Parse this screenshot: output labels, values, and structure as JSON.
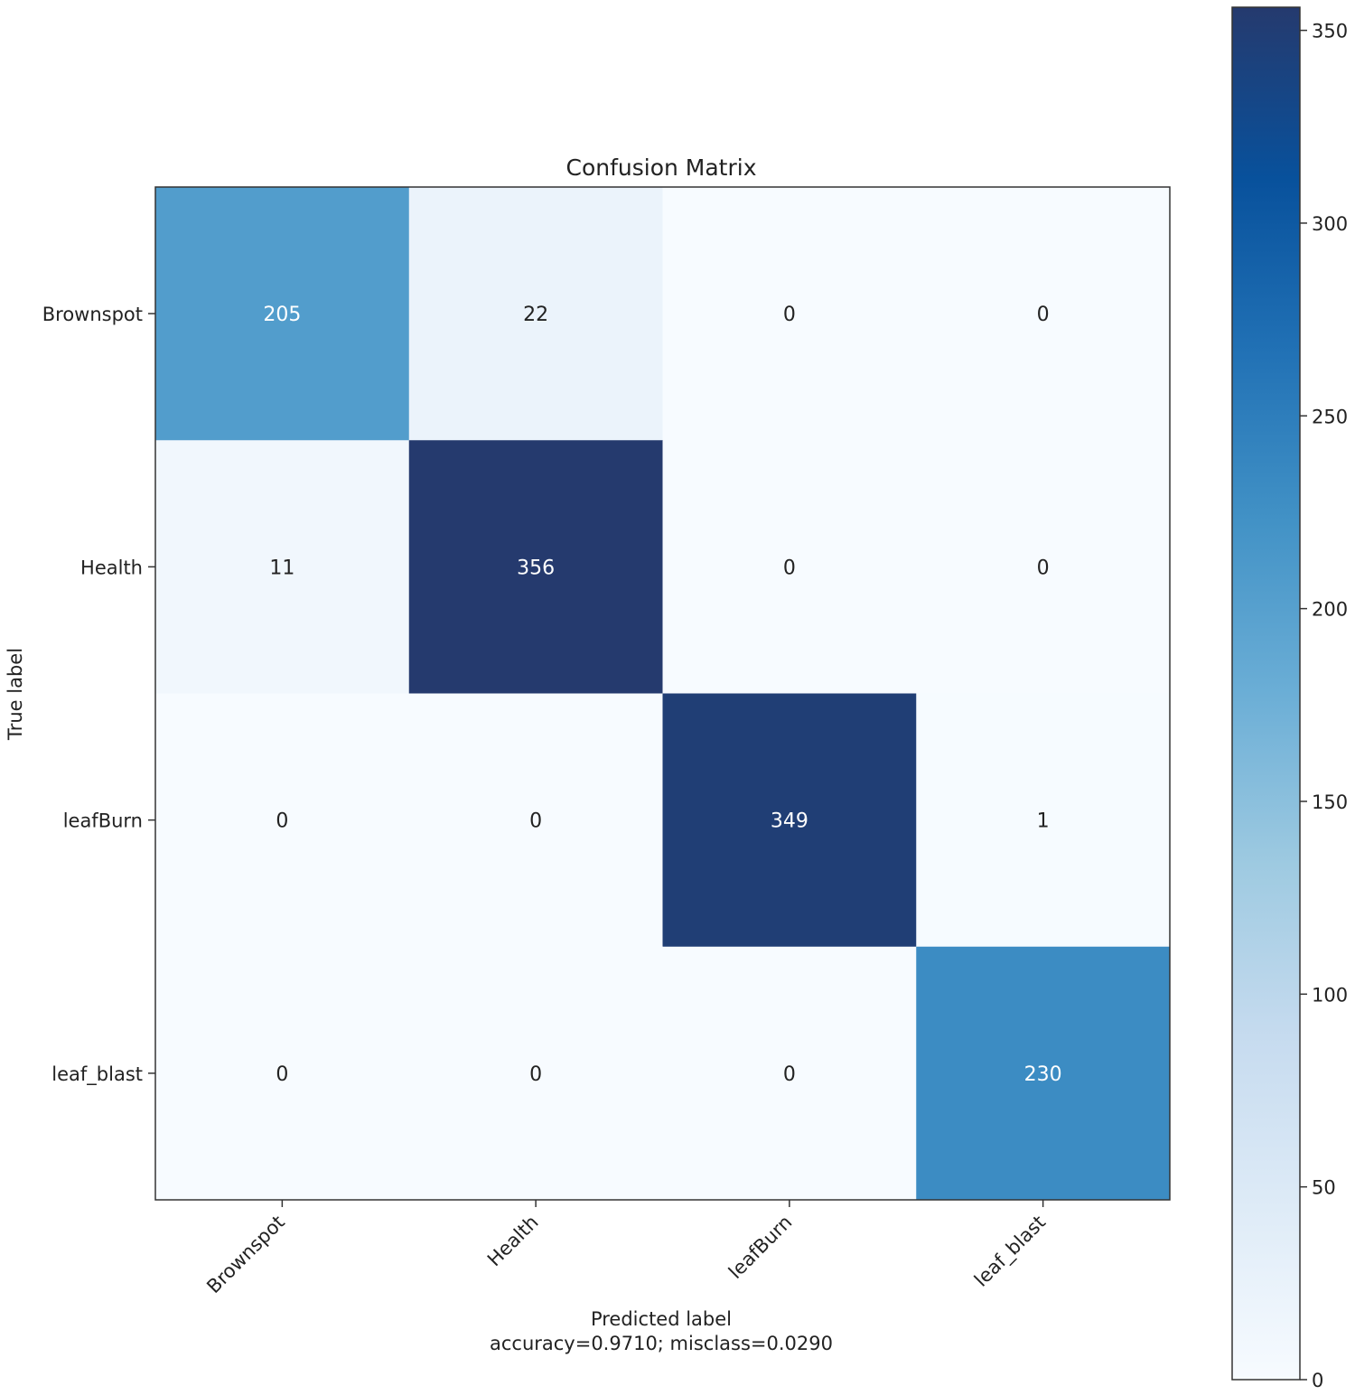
{
  "chart_data": {
    "type": "heatmap",
    "title": "Confusion Matrix",
    "xlabel": "Predicted label",
    "xlabel_sub": "accuracy=0.9710; misclass=0.0290",
    "ylabel": "True label",
    "row_labels": [
      "Brownspot",
      "Health",
      "leafBurn",
      "leaf_blast"
    ],
    "col_labels": [
      "Brownspot",
      "Health",
      "leafBurn",
      "leaf_blast"
    ],
    "matrix": [
      [
        205,
        22,
        0,
        0
      ],
      [
        11,
        356,
        0,
        0
      ],
      [
        0,
        0,
        349,
        1
      ],
      [
        0,
        0,
        0,
        230
      ]
    ],
    "colorbar": {
      "min": 0,
      "max": 356,
      "ticks": [
        0,
        50,
        100,
        150,
        200,
        250,
        300,
        350
      ],
      "tick_labels": [
        "0",
        "50",
        "100",
        "150",
        "200",
        "250",
        "300",
        "350"
      ]
    },
    "colormap": "Blues",
    "colormap_stops": [
      "#f7fbff",
      "#deebf7",
      "#c6dbef",
      "#9ecae1",
      "#6baed6",
      "#4292c6",
      "#2171b5",
      "#08519c",
      "#253a6e"
    ]
  }
}
